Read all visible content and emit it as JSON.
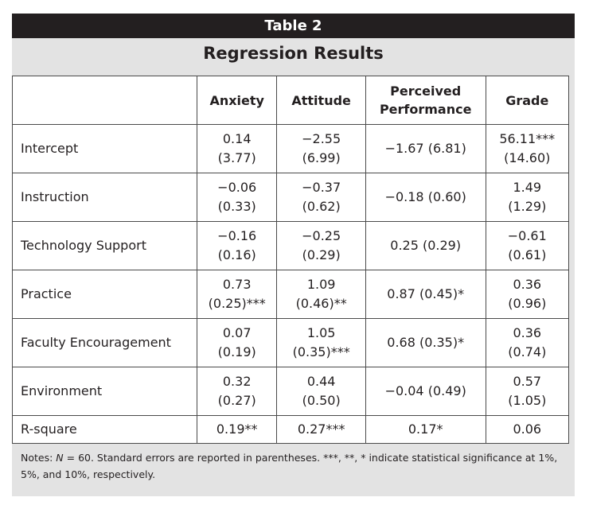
{
  "header": {
    "label": "Table 2"
  },
  "title": "Regression Results",
  "columns": [
    "",
    "Anxiety",
    "Attitude",
    "Perceived Performance",
    "Grade"
  ],
  "column_lines": {
    "perceived_line1": "Perceived",
    "perceived_line2": "Performance"
  },
  "rows": [
    {
      "label": "Intercept",
      "cells": [
        [
          "0.14",
          "(3.77)"
        ],
        [
          "−2.55",
          "(6.99)"
        ],
        [
          "−1.67 (6.81)"
        ],
        [
          "56.11***",
          "(14.60)"
        ]
      ]
    },
    {
      "label": "Instruction",
      "cells": [
        [
          "−0.06",
          "(0.33)"
        ],
        [
          "−0.37",
          "(0.62)"
        ],
        [
          "−0.18 (0.60)"
        ],
        [
          "1.49",
          "(1.29)"
        ]
      ]
    },
    {
      "label": "Technology Support",
      "cells": [
        [
          "−0.16",
          "(0.16)"
        ],
        [
          "−0.25",
          "(0.29)"
        ],
        [
          "0.25 (0.29)"
        ],
        [
          "−0.61",
          "(0.61)"
        ]
      ]
    },
    {
      "label": "Practice",
      "cells": [
        [
          "0.73",
          "(0.25)***"
        ],
        [
          "1.09",
          "(0.46)**"
        ],
        [
          "0.87 (0.45)*"
        ],
        [
          "0.36",
          "(0.96)"
        ]
      ]
    },
    {
      "label": "Faculty Encouragement",
      "cells": [
        [
          "0.07",
          "(0.19)"
        ],
        [
          "1.05",
          "(0.35)***"
        ],
        [
          "0.68 (0.35)*"
        ],
        [
          "0.36",
          "(0.74)"
        ]
      ]
    },
    {
      "label": "Environment",
      "cells": [
        [
          "0.32",
          "(0.27)"
        ],
        [
          "0.44",
          "(0.50)"
        ],
        [
          "−0.04 (0.49)"
        ],
        [
          "0.57",
          "(1.05)"
        ]
      ]
    },
    {
      "label": "R-square",
      "cells": [
        [
          "0.19**"
        ],
        [
          "0.27***"
        ],
        [
          "0.17*"
        ],
        [
          "0.06"
        ]
      ]
    }
  ],
  "notes": {
    "prefix": "Notes: ",
    "n_italic": "N",
    "rest_line1": " = 60. Standard errors are reported in parentheses. ***, **, * indicate statistical significance at 1%,",
    "line2": "5%, and 10%, respectively."
  }
}
